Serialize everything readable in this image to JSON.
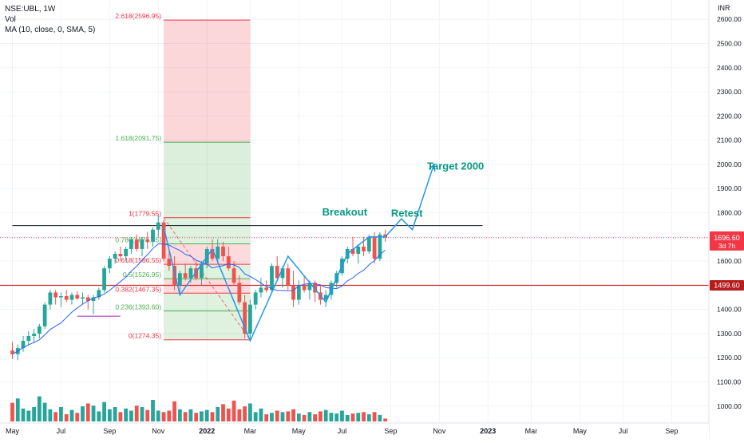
{
  "chart_data": {
    "type": "candlestick",
    "symbol_line": "NSE:UBL, 1W",
    "indicators": [
      "Vol",
      "MA (10, close, 0, SMA, 5)"
    ],
    "currency": "INR",
    "y_range": [
      930,
      2680
    ],
    "y_ticks": [
      1000,
      1100,
      1200,
      1300,
      1400,
      1500,
      1600,
      1700,
      1800,
      1900,
      2000,
      2100,
      2200,
      2300,
      2400,
      2500,
      2600
    ],
    "y_tick_labels": [
      "1000.00",
      "1100.00",
      "1200.00",
      "1300.00",
      "1400.00",
      "1500.00",
      "1600.00",
      "1700.00",
      "1800.00",
      "1900.00",
      "2000.00",
      "2100.00",
      "2200.00",
      "2300.00",
      "2400.00",
      "2500.00",
      "2600.00"
    ],
    "x_labels": [
      "May",
      "Jul",
      "Sep",
      "Nov",
      "2022",
      "Mar",
      "May",
      "Jul",
      "Sep",
      "Nov",
      "2023",
      "Mar",
      "May",
      "Jul",
      "Sep"
    ],
    "x_label_week_index": [
      0,
      9,
      18,
      27,
      36,
      44,
      53,
      61,
      70,
      79,
      88,
      96,
      105,
      113,
      122
    ],
    "price_marker": {
      "value": 1696.6,
      "label": "1696.60",
      "countdown": "3d 7h",
      "color": "#f23645"
    },
    "horizontal_level": {
      "value": 1499.6,
      "label": "1499.60",
      "color": "#d32f2f"
    },
    "resistance_line": {
      "from_week": 0,
      "to_week": 87,
      "value": 1747,
      "color": "#131722"
    },
    "colors": {
      "up": "#26a69a",
      "down": "#ef5350",
      "ma": "#2962ff",
      "annotation_green": "#089981",
      "annotation_blue": "#2196f3",
      "fib_red": "#f23645",
      "fib_green": "#4caf50"
    },
    "fib": {
      "week_start": 28,
      "week_end": 44,
      "levels": [
        {
          "ratio": 0,
          "value": 1274.35,
          "label": "0(1274.35)",
          "color": "#f23645"
        },
        {
          "ratio": 0.236,
          "value": 1393.6,
          "label": "0.236(1393.60)",
          "color": "#4caf50"
        },
        {
          "ratio": 0.382,
          "value": 1467.35,
          "label": "0.382(1467.35)",
          "color": "#f23645"
        },
        {
          "ratio": 0.5,
          "value": 1526.95,
          "label": "0.5(1526.95)",
          "color": "#4caf50"
        },
        {
          "ratio": 0.618,
          "value": 1586.55,
          "label": "0.618(1586.55)",
          "color": "#f23645"
        },
        {
          "ratio": 0.786,
          "value": 1671.45,
          "label": "0.786(1671.45)",
          "color": "#4caf50"
        },
        {
          "ratio": 1,
          "value": 1779.55,
          "label": "1(1779.55)",
          "color": "#f23645"
        },
        {
          "ratio": 1.618,
          "value": 2091.75,
          "label": "1.618(2091.75)",
          "color": "#4caf50"
        },
        {
          "ratio": 2.618,
          "value": 2596.95,
          "label": "2.618(2596.95)",
          "color": "#f23645"
        }
      ]
    },
    "annotations": [
      {
        "text": "Breakout",
        "week": 61.5,
        "value": 1788
      },
      {
        "text": "Retest",
        "week": 73,
        "value": 1783
      },
      {
        "text": "Target 2000",
        "week": 82,
        "value": 1978
      }
    ],
    "projection_path": [
      [
        58,
        1430
      ],
      [
        62,
        1630
      ],
      [
        66,
        1700
      ],
      [
        69,
        1700
      ],
      [
        72,
        1775
      ],
      [
        74,
        1730
      ],
      [
        78,
        2000
      ]
    ],
    "zigzag_path": [
      [
        28,
        1740
      ],
      [
        31,
        1460
      ],
      [
        37,
        1650
      ],
      [
        44,
        1270
      ],
      [
        51,
        1620
      ],
      [
        58,
        1430
      ],
      [
        62,
        1630
      ]
    ],
    "volume_range": [
      0,
      1000
    ],
    "candles": [
      [
        1230,
        1265,
        1195,
        1215,
        260
      ],
      [
        1215,
        1255,
        1190,
        1240,
        320
      ],
      [
        1240,
        1290,
        1225,
        1270,
        180
      ],
      [
        1270,
        1310,
        1250,
        1290,
        150
      ],
      [
        1290,
        1320,
        1265,
        1300,
        200
      ],
      [
        1300,
        1340,
        1280,
        1330,
        350
      ],
      [
        1330,
        1430,
        1320,
        1420,
        260
      ],
      [
        1420,
        1480,
        1400,
        1470,
        170
      ],
      [
        1470,
        1480,
        1420,
        1450,
        130
      ],
      [
        1450,
        1470,
        1410,
        1455,
        200
      ],
      [
        1455,
        1480,
        1430,
        1440,
        100
      ],
      [
        1440,
        1470,
        1420,
        1460,
        160
      ],
      [
        1460,
        1475,
        1440,
        1445,
        120
      ],
      [
        1445,
        1470,
        1420,
        1450,
        210
      ],
      [
        1450,
        1460,
        1400,
        1435,
        250
      ],
      [
        1435,
        1460,
        1380,
        1450,
        220
      ],
      [
        1450,
        1490,
        1440,
        1480,
        140
      ],
      [
        1480,
        1580,
        1470,
        1570,
        270
      ],
      [
        1570,
        1620,
        1550,
        1610,
        170
      ],
      [
        1610,
        1640,
        1590,
        1630,
        200
      ],
      [
        1630,
        1660,
        1600,
        1620,
        130
      ],
      [
        1620,
        1660,
        1600,
        1650,
        180
      ],
      [
        1650,
        1700,
        1630,
        1690,
        150
      ],
      [
        1690,
        1710,
        1640,
        1650,
        220
      ],
      [
        1650,
        1700,
        1620,
        1690,
        200
      ],
      [
        1690,
        1720,
        1650,
        1680,
        160
      ],
      [
        1680,
        1740,
        1660,
        1730,
        300
      ],
      [
        1730,
        1790,
        1700,
        1760,
        150
      ],
      [
        1760,
        1770,
        1600,
        1610,
        130
      ],
      [
        1610,
        1640,
        1560,
        1580,
        150
      ],
      [
        1580,
        1620,
        1480,
        1500,
        280
      ],
      [
        1500,
        1560,
        1460,
        1550,
        170
      ],
      [
        1550,
        1590,
        1520,
        1530,
        130
      ],
      [
        1530,
        1580,
        1510,
        1570,
        170
      ],
      [
        1570,
        1600,
        1520,
        1530,
        120
      ],
      [
        1530,
        1600,
        1500,
        1590,
        140
      ],
      [
        1590,
        1660,
        1570,
        1650,
        160
      ],
      [
        1650,
        1690,
        1600,
        1610,
        130
      ],
      [
        1610,
        1690,
        1590,
        1660,
        200
      ],
      [
        1660,
        1680,
        1600,
        1620,
        240
      ],
      [
        1620,
        1660,
        1560,
        1570,
        180
      ],
      [
        1570,
        1600,
        1500,
        1510,
        290
      ],
      [
        1510,
        1540,
        1420,
        1430,
        170
      ],
      [
        1430,
        1460,
        1280,
        1300,
        210
      ],
      [
        1300,
        1440,
        1270,
        1420,
        250
      ],
      [
        1420,
        1480,
        1400,
        1470,
        130
      ],
      [
        1470,
        1530,
        1450,
        1490,
        180
      ],
      [
        1490,
        1520,
        1470,
        1480,
        100
      ],
      [
        1480,
        1590,
        1470,
        1580,
        120
      ],
      [
        1580,
        1620,
        1520,
        1530,
        150
      ],
      [
        1530,
        1580,
        1490,
        1570,
        130
      ],
      [
        1570,
        1590,
        1480,
        1500,
        140
      ],
      [
        1500,
        1560,
        1410,
        1440,
        170
      ],
      [
        1440,
        1520,
        1420,
        1500,
        110
      ],
      [
        1500,
        1540,
        1470,
        1480,
        90
      ],
      [
        1480,
        1520,
        1440,
        1510,
        130
      ],
      [
        1510,
        1520,
        1430,
        1470,
        100
      ],
      [
        1470,
        1500,
        1420,
        1440,
        140
      ],
      [
        1440,
        1480,
        1410,
        1460,
        160
      ],
      [
        1460,
        1520,
        1440,
        1510,
        120
      ],
      [
        1510,
        1560,
        1490,
        1550,
        110
      ],
      [
        1550,
        1620,
        1540,
        1610,
        150
      ],
      [
        1610,
        1660,
        1590,
        1650,
        90
      ],
      [
        1650,
        1700,
        1620,
        1630,
        110
      ],
      [
        1630,
        1670,
        1590,
        1660,
        120
      ],
      [
        1660,
        1700,
        1620,
        1640,
        130
      ],
      [
        1640,
        1710,
        1630,
        1700,
        100
      ],
      [
        1700,
        1720,
        1590,
        1610,
        130
      ],
      [
        1610,
        1720,
        1600,
        1710,
        90
      ],
      [
        1710,
        1730,
        1680,
        1697,
        40
      ]
    ]
  }
}
